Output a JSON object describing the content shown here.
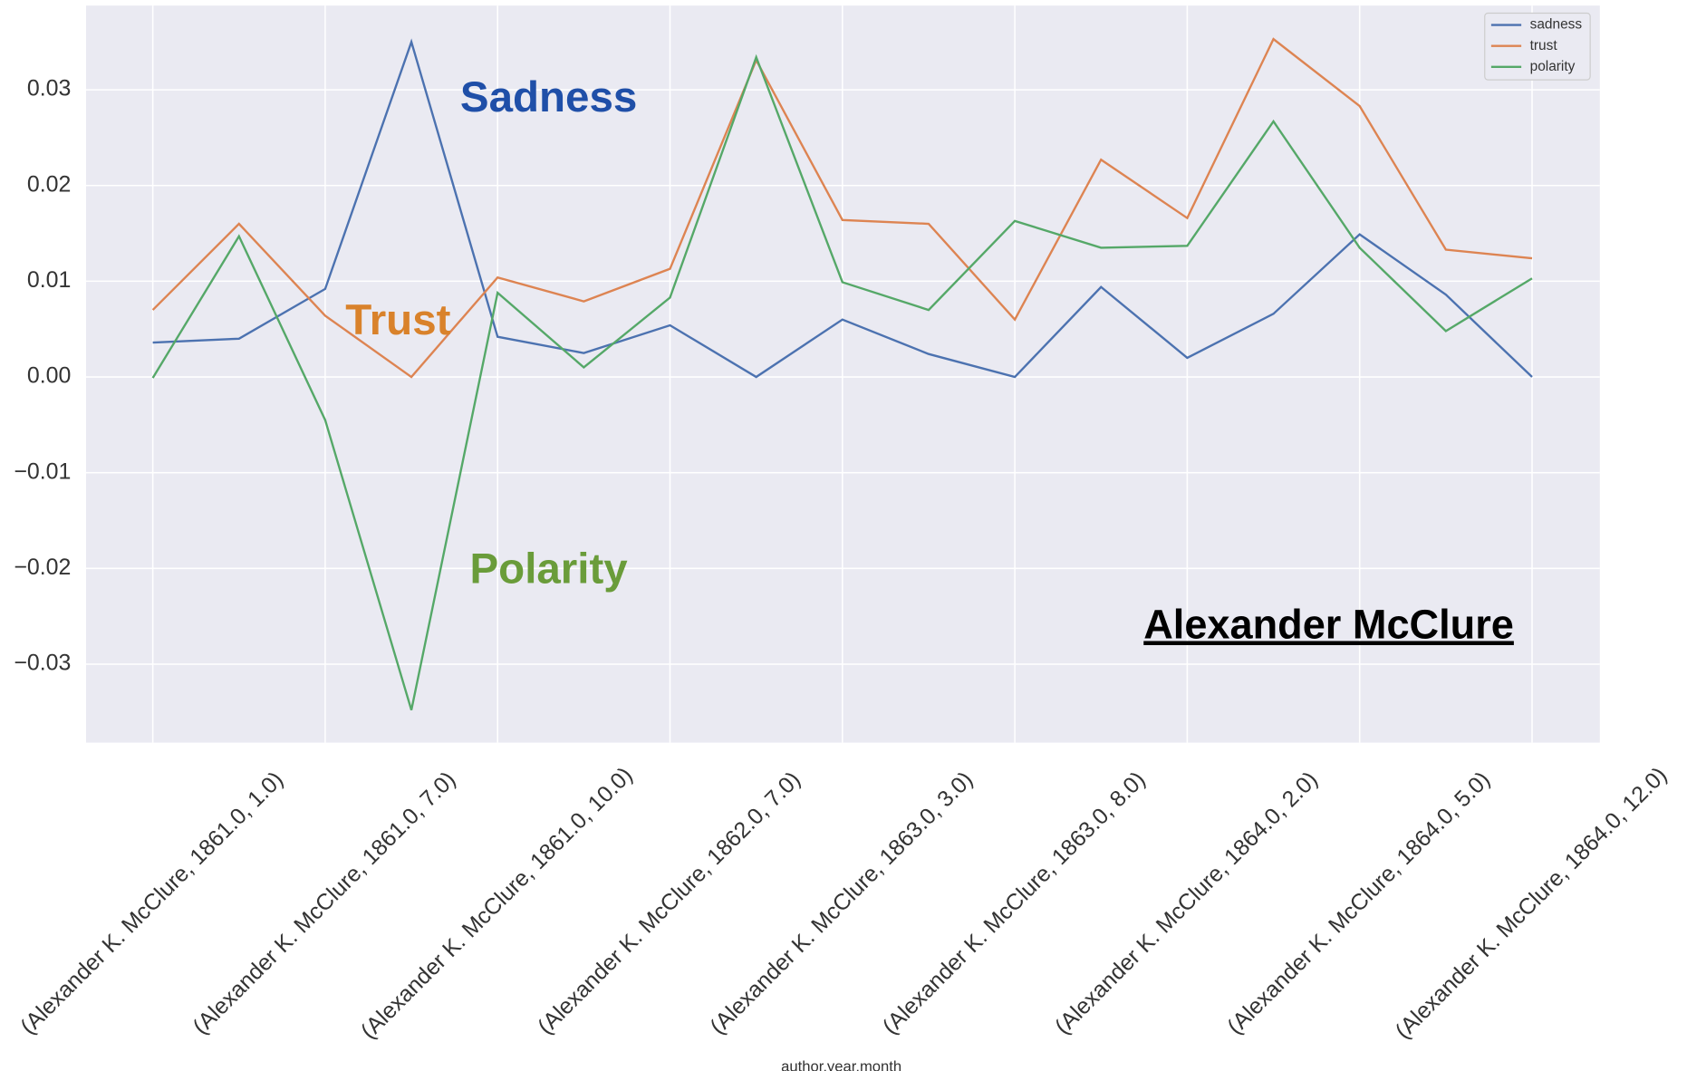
{
  "chart_data": {
    "type": "line",
    "xlabel": "author,year,month",
    "categories": [
      "(Alexander K. McClure, 1861.0, 1.0)",
      null,
      "(Alexander K. McClure, 1861.0, 7.0)",
      null,
      "(Alexander K. McClure, 1861.0, 10.0)",
      null,
      "(Alexander K. McClure, 1862.0, 7.0)",
      null,
      "(Alexander K. McClure, 1863.0, 3.0)",
      null,
      "(Alexander K. McClure, 1863.0, 8.0)",
      null,
      "(Alexander K. McClure, 1864.0, 2.0)",
      null,
      "(Alexander K. McClure, 1864.0, 5.0)",
      null,
      "(Alexander K. McClure, 1864.0, 12.0)"
    ],
    "series": [
      {
        "name": "sadness",
        "color": "#4c72b0",
        "values": [
          0.0036,
          0.004,
          0.0092,
          0.035,
          0.0042,
          0.0025,
          0.0054,
          0.0,
          0.006,
          0.0024,
          0.0,
          0.0094,
          0.002,
          0.0066,
          0.0149,
          0.0086,
          0.0
        ]
      },
      {
        "name": "trust",
        "color": "#dd8452",
        "values": [
          0.007,
          0.016,
          0.0064,
          0.0,
          0.0104,
          0.0079,
          0.0113,
          0.0331,
          0.0164,
          0.016,
          0.006,
          0.0227,
          0.0166,
          0.0353,
          0.0283,
          0.0133,
          0.0124
        ]
      },
      {
        "name": "polarity",
        "color": "#55a868",
        "values": [
          -0.0001,
          0.0147,
          -0.0045,
          -0.0348,
          0.0088,
          0.001,
          0.0083,
          0.0334,
          0.0099,
          0.007,
          0.0163,
          0.0135,
          0.0137,
          0.0267,
          0.0135,
          0.0048,
          0.0103
        ]
      }
    ],
    "ylim": [
      -0.0382,
      0.0388
    ],
    "yticks": [
      {
        "value": -0.03,
        "label": "−0.03"
      },
      {
        "value": -0.02,
        "label": "−0.02"
      },
      {
        "value": -0.01,
        "label": "−0.01"
      },
      {
        "value": 0,
        "label": "0.00"
      },
      0.01,
      0.02,
      0.03
    ],
    "grid": true,
    "legend": "upper right",
    "annotations": [
      {
        "text": "Sadness",
        "color": "#1f4fa8"
      },
      {
        "text": "Trust",
        "color": "#d9822b"
      },
      {
        "text": "Polarity",
        "color": "#6a9c3a"
      },
      {
        "text": "Alexander McClure",
        "color": "#000000"
      }
    ]
  }
}
